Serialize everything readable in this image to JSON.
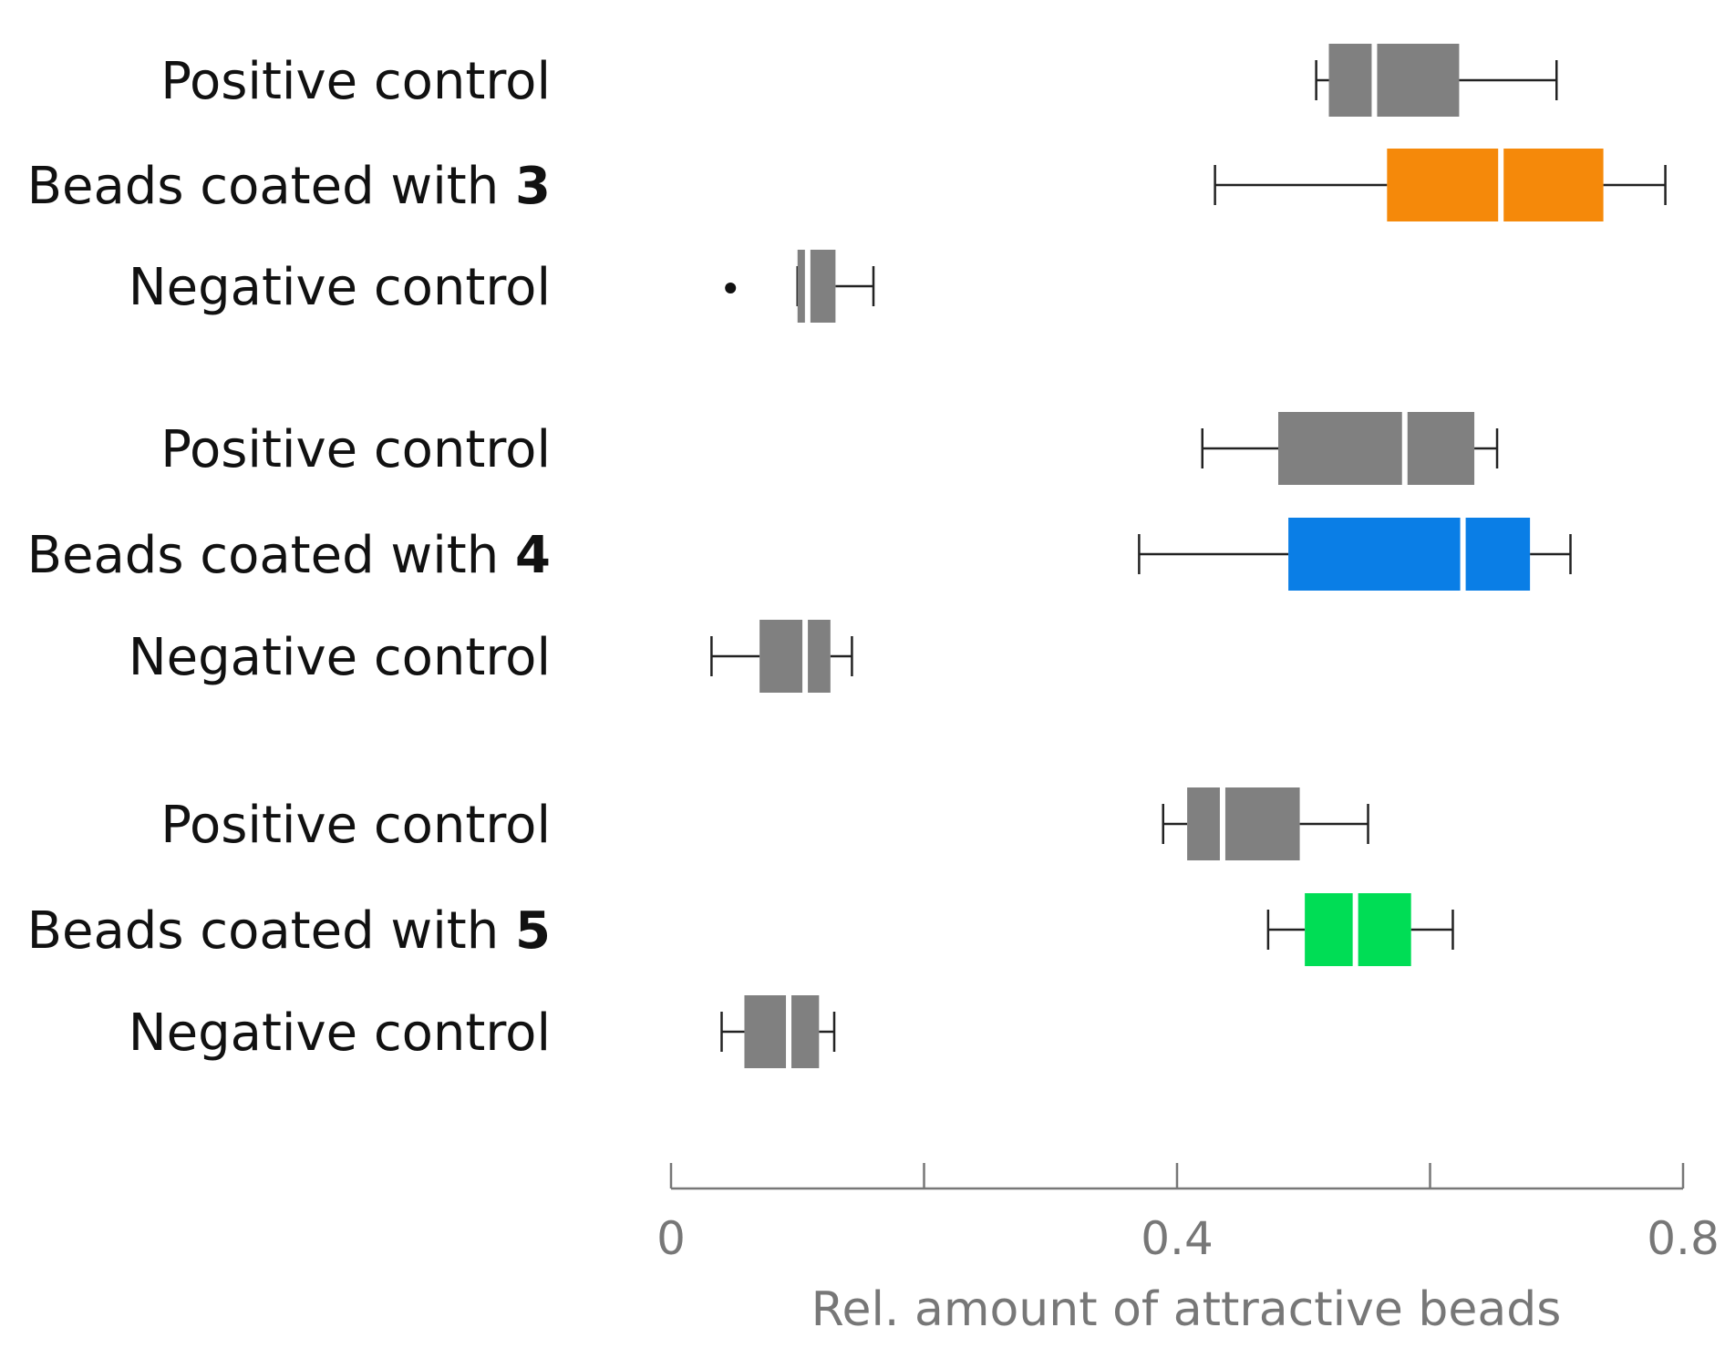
{
  "chart_data": {
    "type": "boxplot",
    "orientation": "horizontal",
    "title": "",
    "xlabel": "Rel. amount of attractive beads",
    "ylabel": "",
    "xlim": [
      0,
      0.8
    ],
    "ticks": [
      0,
      0.2,
      0.4,
      0.6,
      0.8
    ],
    "tick_labels": [
      {
        "value": 0,
        "label": "0"
      },
      {
        "value": 0.4,
        "label": "0.4"
      },
      {
        "value": 0.8,
        "label": "0.8"
      }
    ],
    "colors": {
      "control": "#808080",
      "compound3": "#f5890a",
      "compound4": "#0a7ee6",
      "compound5": "#00dd55",
      "median": "#ffffff",
      "whisker": "#222222",
      "axis": "#777777"
    },
    "groups": [
      {
        "rows": [
          {
            "label": "Positive control",
            "bold_suffix": "",
            "color_key": "control",
            "whisker_low": 0.51,
            "q1": 0.52,
            "median": 0.556,
            "q3": 0.623,
            "whisker_high": 0.7,
            "outliers": []
          },
          {
            "label": "Beads coated with ",
            "bold_suffix": "3",
            "color_key": "compound3",
            "whisker_low": 0.43,
            "q1": 0.566,
            "median": 0.656,
            "q3": 0.737,
            "whisker_high": 0.786,
            "outliers": []
          },
          {
            "label": "Negative control",
            "bold_suffix": "",
            "color_key": "control",
            "whisker_low": 0.1,
            "q1": 0.1,
            "median": 0.108,
            "q3": 0.13,
            "whisker_high": 0.16,
            "outliers": [
              0.047
            ]
          }
        ]
      },
      {
        "rows": [
          {
            "label": "Positive control",
            "bold_suffix": "",
            "color_key": "control",
            "whisker_low": 0.42,
            "q1": 0.48,
            "median": 0.58,
            "q3": 0.635,
            "whisker_high": 0.653,
            "outliers": []
          },
          {
            "label": "Beads coated with ",
            "bold_suffix": "4",
            "color_key": "compound4",
            "whisker_low": 0.37,
            "q1": 0.488,
            "median": 0.626,
            "q3": 0.679,
            "whisker_high": 0.711,
            "outliers": []
          },
          {
            "label": "Negative control",
            "bold_suffix": "",
            "color_key": "control",
            "whisker_low": 0.032,
            "q1": 0.07,
            "median": 0.106,
            "q3": 0.126,
            "whisker_high": 0.143,
            "outliers": []
          }
        ]
      },
      {
        "rows": [
          {
            "label": "Positive control",
            "bold_suffix": "",
            "color_key": "control",
            "whisker_low": 0.389,
            "q1": 0.408,
            "median": 0.436,
            "q3": 0.497,
            "whisker_high": 0.551,
            "outliers": []
          },
          {
            "label": "Beads coated with ",
            "bold_suffix": "5",
            "color_key": "compound5",
            "whisker_low": 0.472,
            "q1": 0.501,
            "median": 0.541,
            "q3": 0.585,
            "whisker_high": 0.618,
            "outliers": []
          },
          {
            "label": "Negative control",
            "bold_suffix": "",
            "color_key": "control",
            "whisker_low": 0.04,
            "q1": 0.058,
            "median": 0.093,
            "q3": 0.117,
            "whisker_high": 0.129,
            "outliers": []
          }
        ]
      }
    ]
  }
}
